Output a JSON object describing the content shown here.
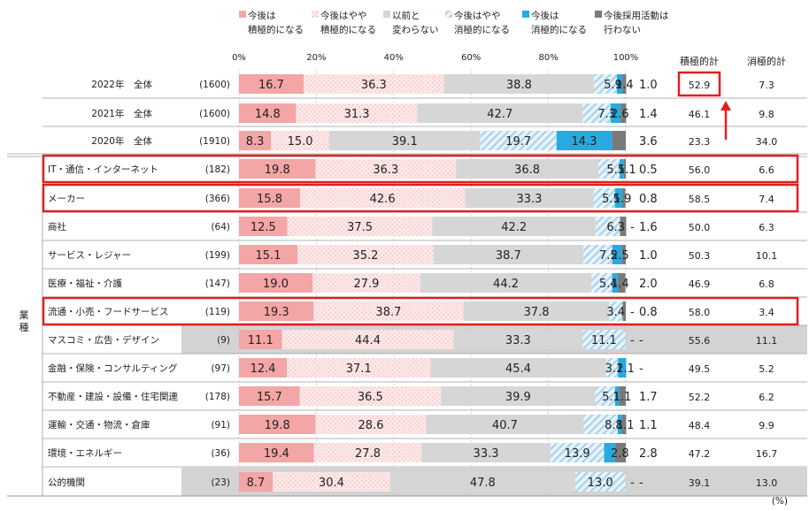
{
  "colors": {
    "pos_strong": "#f4a5a5",
    "pos_mild": "#fbe0e0",
    "same": "#d6d6d6",
    "neg_mild": "#dcecf7",
    "neg_strong": "#27aae1",
    "none": "#7a7a7a",
    "gray_row": "#d3d3d3",
    "highlight": "#e02020"
  },
  "summary_headers": {
    "positive": "積極的計",
    "negative": "消極的計"
  },
  "group_label": "業種",
  "percent_unit": "(%)",
  "chart_data": {
    "type": "bar",
    "orientation": "horizontal",
    "stacked": true,
    "xlim": [
      0,
      100
    ],
    "x_ticks": [
      "0%",
      "20%",
      "40%",
      "60%",
      "80%",
      "100%"
    ],
    "legend": [
      {
        "key": "pos_strong",
        "label": "今後は積極的になる",
        "lines": [
          "今後は",
          "積極的になる"
        ]
      },
      {
        "key": "pos_mild",
        "label": "今後はやや積極的になる",
        "lines": [
          "今後はやや",
          "積極的になる"
        ]
      },
      {
        "key": "same",
        "label": "以前と変わらない",
        "lines": [
          "以前と",
          "変わらない"
        ]
      },
      {
        "key": "neg_mild",
        "label": "今後はやや消極的になる",
        "lines": [
          "今後はやや",
          "消極的になる"
        ]
      },
      {
        "key": "neg_strong",
        "label": "今後は消極的になる",
        "lines": [
          "今後は",
          "消極的になる"
        ]
      },
      {
        "key": "none",
        "label": "今後採用活動は行わない",
        "lines": [
          "今後採用活動は",
          "行わない"
        ]
      }
    ],
    "rows": [
      {
        "label": "2022年　全体",
        "n": "(1600)",
        "values": [
          16.7,
          36.3,
          38.8,
          5.9,
          1.4,
          1.0
        ],
        "value_labels": [
          "16.7",
          "36.3",
          "38.8",
          "5.9",
          "1.4",
          "1.0"
        ],
        "pos_total": "52.9",
        "neg_total": "7.3",
        "gray": false,
        "highlight": false,
        "total_highlight": true,
        "section": "total"
      },
      {
        "label": "2021年　全体",
        "n": "(1600)",
        "values": [
          14.8,
          31.3,
          42.7,
          7.3,
          2.6,
          1.4
        ],
        "value_labels": [
          "14.8",
          "31.3",
          "42.7",
          "7.3",
          "2.6",
          "1.4"
        ],
        "pos_total": "46.1",
        "neg_total": "9.8",
        "gray": false,
        "highlight": false,
        "section": "total"
      },
      {
        "label": "2020年　全体",
        "n": "(1910)",
        "values": [
          8.3,
          15.0,
          39.1,
          19.7,
          14.3,
          3.6
        ],
        "value_labels": [
          "8.3",
          "15.0",
          "39.1",
          "19.7",
          "14.3",
          "3.6"
        ],
        "pos_total": "23.3",
        "neg_total": "34.0",
        "gray": false,
        "highlight": false,
        "section": "total"
      },
      {
        "label": "IT・通信・インターネット",
        "n": "(182)",
        "values": [
          19.8,
          36.3,
          36.8,
          5.5,
          1.1,
          0.5
        ],
        "value_labels": [
          "19.8",
          "36.3",
          "36.8",
          "5.5",
          "1.1",
          "0.5"
        ],
        "pos_total": "56.0",
        "neg_total": "6.6",
        "gray": false,
        "highlight": true,
        "section": "industry"
      },
      {
        "label": "メーカー",
        "n": "(366)",
        "values": [
          15.8,
          42.6,
          33.3,
          5.5,
          1.9,
          0.8
        ],
        "value_labels": [
          "15.8",
          "42.6",
          "33.3",
          "5.5",
          "1.9",
          "0.8"
        ],
        "pos_total": "58.5",
        "neg_total": "7.4",
        "gray": false,
        "highlight": true,
        "section": "industry"
      },
      {
        "label": "商社",
        "n": "(64)",
        "values": [
          12.5,
          37.5,
          42.2,
          6.3,
          0,
          1.6
        ],
        "value_labels": [
          "12.5",
          "37.5",
          "42.2",
          "6.3",
          "-",
          "1.6"
        ],
        "pos_total": "50.0",
        "neg_total": "6.3",
        "gray": false,
        "highlight": false,
        "section": "industry"
      },
      {
        "label": "サービス・レジャー",
        "n": "(199)",
        "values": [
          15.1,
          35.2,
          38.7,
          7.5,
          2.5,
          1.0
        ],
        "value_labels": [
          "15.1",
          "35.2",
          "38.7",
          "7.5",
          "2.5",
          "1.0"
        ],
        "pos_total": "50.3",
        "neg_total": "10.1",
        "gray": false,
        "highlight": false,
        "section": "industry"
      },
      {
        "label": "医療・福祉・介護",
        "n": "(147)",
        "values": [
          19.0,
          27.9,
          44.2,
          5.4,
          1.4,
          2.0
        ],
        "value_labels": [
          "19.0",
          "27.9",
          "44.2",
          "5.4",
          "1.4",
          "2.0"
        ],
        "pos_total": "46.9",
        "neg_total": "6.8",
        "gray": false,
        "highlight": false,
        "section": "industry"
      },
      {
        "label": "流通・小売・フードサービス",
        "n": "(119)",
        "values": [
          19.3,
          38.7,
          37.8,
          3.4,
          0,
          0.8
        ],
        "value_labels": [
          "19.3",
          "38.7",
          "37.8",
          "3.4",
          "-",
          "0.8"
        ],
        "pos_total": "58.0",
        "neg_total": "3.4",
        "gray": false,
        "highlight": true,
        "section": "industry"
      },
      {
        "label": "マスコミ・広告・デザイン",
        "n": "(9)",
        "values": [
          11.1,
          44.4,
          33.3,
          11.1,
          0,
          0
        ],
        "value_labels": [
          "11.1",
          "44.4",
          "33.3",
          "11.1",
          "-",
          "-"
        ],
        "pos_total": "55.6",
        "neg_total": "11.1",
        "gray": true,
        "highlight": false,
        "section": "industry"
      },
      {
        "label": "金融・保険・コンサルティング",
        "n": "(97)",
        "values": [
          12.4,
          37.1,
          45.4,
          3.1,
          2.1,
          0
        ],
        "value_labels": [
          "12.4",
          "37.1",
          "45.4",
          "3.1",
          "2.1",
          "-"
        ],
        "pos_total": "49.5",
        "neg_total": "5.2",
        "gray": false,
        "highlight": false,
        "section": "industry"
      },
      {
        "label": "不動産・建設・設備・住宅関連",
        "n": "(178)",
        "values": [
          15.7,
          36.5,
          39.9,
          5.1,
          1.1,
          1.7
        ],
        "value_labels": [
          "15.7",
          "36.5",
          "39.9",
          "5.1",
          "1.1",
          "1.7"
        ],
        "pos_total": "52.2",
        "neg_total": "6.2",
        "gray": false,
        "highlight": false,
        "section": "industry"
      },
      {
        "label": "運輸・交通・物流・倉庫",
        "n": "(91)",
        "values": [
          19.8,
          28.6,
          40.7,
          8.8,
          1.1,
          1.1
        ],
        "value_labels": [
          "19.8",
          "28.6",
          "40.7",
          "8.8",
          "1.1",
          "1.1"
        ],
        "pos_total": "48.4",
        "neg_total": "9.9",
        "gray": false,
        "highlight": false,
        "section": "industry"
      },
      {
        "label": "環境・エネルギー",
        "n": "(36)",
        "values": [
          19.4,
          27.8,
          33.3,
          13.9,
          2.8,
          2.8
        ],
        "value_labels": [
          "19.4",
          "27.8",
          "33.3",
          "13.9",
          "2.8",
          "2.8"
        ],
        "pos_total": "47.2",
        "neg_total": "16.7",
        "gray": false,
        "highlight": false,
        "section": "industry"
      },
      {
        "label": "公的機関",
        "n": "(23)",
        "values": [
          8.7,
          30.4,
          47.8,
          13.0,
          0,
          0
        ],
        "value_labels": [
          "8.7",
          "30.4",
          "47.8",
          "13.0",
          "-",
          "-"
        ],
        "pos_total": "39.1",
        "neg_total": "13.0",
        "gray": true,
        "highlight": false,
        "section": "industry"
      }
    ]
  }
}
